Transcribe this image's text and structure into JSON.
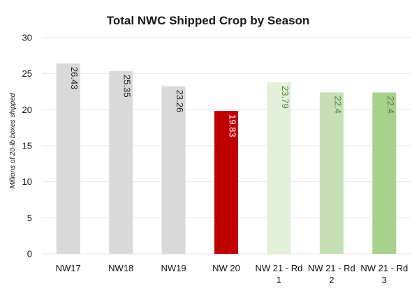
{
  "chart_data": {
    "type": "bar",
    "title": "Total NWC Shipped Crop by Season",
    "xlabel": "",
    "ylabel": "Millions of 20-lb boxes shipped",
    "ylim": [
      0,
      30
    ],
    "yticks": [
      0,
      5,
      10,
      15,
      20,
      25,
      30
    ],
    "grid": true,
    "categories": [
      [
        "NW17"
      ],
      [
        "NW18"
      ],
      [
        "NW19"
      ],
      [
        "NW 20"
      ],
      [
        "NW 21 - Rd",
        "1"
      ],
      [
        "NW 21 - Rd",
        "2"
      ],
      [
        "NW 21 - Rd",
        "3"
      ]
    ],
    "values": [
      26.43,
      25.35,
      23.26,
      19.83,
      23.79,
      22.4,
      22.4
    ],
    "data_labels": [
      "26.43",
      "25.35",
      "23.26",
      "19.83",
      "23.79",
      "22.4",
      "22.4"
    ],
    "bar_colors": [
      "#d9d9d9",
      "#d9d9d9",
      "#d9d9d9",
      "#c00000",
      "#e2f0d9",
      "#c5e0b4",
      "#a9d18e"
    ],
    "label_colors": [
      "#1a1a1a",
      "#1a1a1a",
      "#1a1a1a",
      "#ffffff",
      "#548235",
      "#548235",
      "#548235"
    ]
  }
}
